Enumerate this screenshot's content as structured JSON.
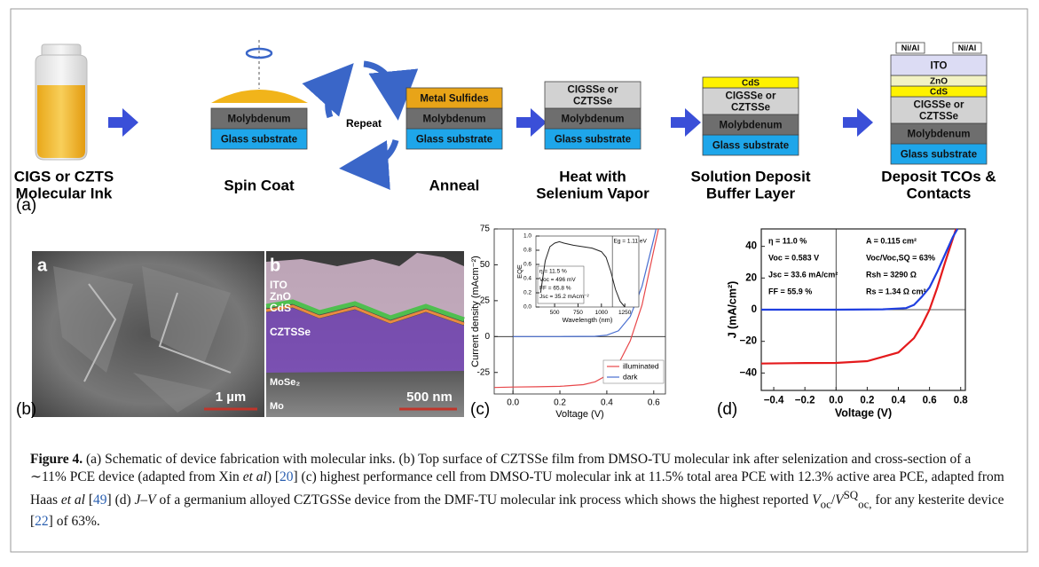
{
  "panel_a": {
    "label": "(a)",
    "steps": [
      "CIGS or CZTS\nMolecular Ink",
      "Spin Coat",
      "Anneal",
      "Heat with\nSelenium Vapor",
      "Solution Deposit\nBuffer Layer",
      "Deposit TCOs &\nContacts"
    ],
    "repeat": "Repeat",
    "stacks": [
      {
        "layers": [
          {
            "text": "Molybdenum",
            "color": "#6e6e6e"
          },
          {
            "text": "Glass substrate",
            "color": "#1ea6ea"
          }
        ]
      },
      {
        "layers": [
          {
            "text": "Metal Sulfides",
            "color": "#e8a418"
          },
          {
            "text": "Molybdenum",
            "color": "#6e6e6e"
          },
          {
            "text": "Glass substrate",
            "color": "#1ea6ea"
          }
        ]
      },
      {
        "layers": [
          {
            "text": "CIGSSe or\nCZTSSe",
            "color": "#d2d2d2"
          },
          {
            "text": "Molybdenum",
            "color": "#6e6e6e"
          },
          {
            "text": "Glass substrate",
            "color": "#1ea6ea"
          }
        ]
      },
      {
        "layers": [
          {
            "text": "CdS",
            "color": "#fff200"
          },
          {
            "text": "CIGSSe or\nCZTSSe",
            "color": "#d2d2d2"
          },
          {
            "text": "Molybdenum",
            "color": "#6e6e6e"
          },
          {
            "text": "Glass substrate",
            "color": "#1ea6ea"
          }
        ]
      },
      {
        "contacts": [
          "Ni/Al",
          "Ni/Al"
        ],
        "layers": [
          {
            "text": "ITO",
            "color": "#dcdcf4"
          },
          {
            "text": "ZnO",
            "color": "#f2f2c4"
          },
          {
            "text": "CdS",
            "color": "#fff200"
          },
          {
            "text": "CIGSSe or\nCZTSSe",
            "color": "#d2d2d2"
          },
          {
            "text": "Molybdenum",
            "color": "#6e6e6e"
          },
          {
            "text": "Glass substrate",
            "color": "#1ea6ea"
          }
        ]
      }
    ]
  },
  "panel_b": {
    "label": "(b)",
    "image_a": {
      "tag": "a",
      "scale": "1 µm"
    },
    "image_b": {
      "tag": "b",
      "scale": "500 nm",
      "layers": [
        "ITO",
        "ZnO",
        "CdS",
        "CZTSSe",
        "MoSe₂",
        "Mo"
      ]
    }
  },
  "panel_c": {
    "label": "(c)",
    "xlabel": "Voltage (V)",
    "ylabel": "Current density (mAcm⁻²)",
    "xlim": [
      -0.08,
      0.65
    ],
    "ylim": [
      -40,
      75
    ],
    "xticks": [
      {
        "value": 0,
        "label": "0.0"
      },
      0.2,
      0.4,
      0.6
    ],
    "yticks": [
      -25,
      0,
      25,
      50,
      75
    ],
    "series": [
      {
        "name": "illuminated",
        "color": "#e8474a",
        "x": [
          -0.08,
          0,
          0.1,
          0.2,
          0.3,
          0.35,
          0.4,
          0.45,
          0.5,
          0.55,
          0.6,
          0.62
        ],
        "values": [
          -35.5,
          -35.2,
          -35,
          -34.7,
          -33.5,
          -31.5,
          -27,
          -19,
          -3,
          22,
          60,
          75
        ]
      },
      {
        "name": "dark",
        "color": "#4a6fd0",
        "x": [
          0,
          0.2,
          0.35,
          0.4,
          0.45,
          0.5,
          0.55,
          0.6,
          0.61
        ],
        "values": [
          0,
          0,
          0.2,
          1,
          4,
          14,
          35,
          68,
          75
        ]
      }
    ],
    "inset": {
      "xlabel": "Wavelength (nm)",
      "ylabel": "EQE",
      "xlim": [
        300,
        1400
      ],
      "ylim": [
        0,
        1
      ],
      "xticks": [
        500,
        750,
        1000,
        1250
      ],
      "yticks": [
        {
          "value": 0,
          "label": "0.0"
        },
        0.2,
        0.4,
        0.6,
        0.8,
        {
          "value": 1,
          "label": "1.0"
        }
      ],
      "x": [
        350,
        400,
        450,
        500,
        550,
        600,
        700,
        800,
        900,
        1000,
        1050,
        1100,
        1150,
        1200,
        1250
      ],
      "values": [
        0.2,
        0.65,
        0.85,
        0.9,
        0.92,
        0.9,
        0.87,
        0.85,
        0.83,
        0.78,
        0.7,
        0.5,
        0.25,
        0.08,
        0
      ],
      "notes": [
        "Eg = 1.11 eV",
        "η = 11.5 %",
        "Voc = 496 mV",
        "FF = 65.8 %",
        "Jsc = 35.2 mAcm⁻²"
      ]
    }
  },
  "panel_d": {
    "label": "(d)",
    "xlabel": "Voltage (V)",
    "ylabel": "J (mA/cm²)",
    "xlim": [
      -0.48,
      0.83
    ],
    "ylim": [
      -51,
      51
    ],
    "xticks": [
      {
        "value": -0.4,
        "label": "−0.4"
      },
      {
        "value": -0.2,
        "label": "−0.2"
      },
      {
        "value": 0,
        "label": "0.0"
      },
      0.2,
      0.4,
      0.6,
      0.8
    ],
    "yticks": [
      {
        "value": -40,
        "label": "−40"
      },
      {
        "value": -20,
        "label": "−20"
      },
      0,
      20,
      40
    ],
    "series": [
      {
        "color": "#e41a1c",
        "x": [
          -0.48,
          -0.2,
          0,
          0.2,
          0.4,
          0.5,
          0.55,
          0.6,
          0.65,
          0.7,
          0.75,
          0.77
        ],
        "values": [
          -34,
          -33.7,
          -33.6,
          -32.5,
          -27,
          -18,
          -10,
          0,
          14,
          30,
          45,
          51
        ]
      },
      {
        "color": "#1f3fe0",
        "x": [
          -0.48,
          0,
          0.3,
          0.45,
          0.5,
          0.55,
          0.6,
          0.65,
          0.7,
          0.75,
          0.78
        ],
        "values": [
          0,
          0,
          0.2,
          1,
          3,
          8,
          14,
          24,
          35,
          46,
          51
        ]
      }
    ],
    "notes_left": [
      "η = 11.0 %",
      "Voc = 0.583 V",
      "Jsc = 33.6 mA/cm²",
      "FF = 55.9 %"
    ],
    "notes_right": [
      "A = 0.115 cm²",
      "Voc/Voc,SQ = 63%",
      "Rsh = 3290 Ω",
      "Rs = 1.34 Ω cm²"
    ]
  },
  "caption": [
    {
      "text": "Figure 4.",
      "style": "bold"
    },
    {
      "text": " (a) Schematic of device fabrication with molecular inks. (b) Top surface of CZTSSe film from DMSO-TU molecular ink after selenization and cross-section of a ∼11% PCE device (adapted from Xin ",
      "style": "normal"
    },
    {
      "text": "et al",
      "style": "italic"
    },
    {
      "text": ") [",
      "style": "normal"
    },
    {
      "text": "20",
      "style": "link"
    },
    {
      "text": "] (c) highest performance cell from DMSO-TU molecular ink at 11.5% total area PCE with 12.3% active area PCE, adapted from Haas ",
      "style": "normal"
    },
    {
      "text": "et al",
      "style": "italic"
    },
    {
      "text": " [",
      "style": "normal"
    },
    {
      "text": "49",
      "style": "link"
    },
    {
      "text": "] (d) ",
      "style": "normal"
    },
    {
      "text": "J–V",
      "style": "italic"
    },
    {
      "text": " of a germanium alloyed CZTGSSe device from the DMF-TU molecular ink process which shows the highest reported ",
      "style": "normal"
    },
    {
      "text": "V",
      "style": "italic"
    },
    {
      "text": "oc",
      "style": "sub"
    },
    {
      "text": "/",
      "style": "normal"
    },
    {
      "text": "V",
      "style": "italic"
    },
    {
      "text": "SQ",
      "style": "sup"
    },
    {
      "text": "oc,",
      "style": "sub"
    },
    {
      "text": " for any kesterite device [",
      "style": "normal"
    },
    {
      "text": "22",
      "style": "link"
    },
    {
      "text": "] of 63%.",
      "style": "normal"
    }
  ]
}
